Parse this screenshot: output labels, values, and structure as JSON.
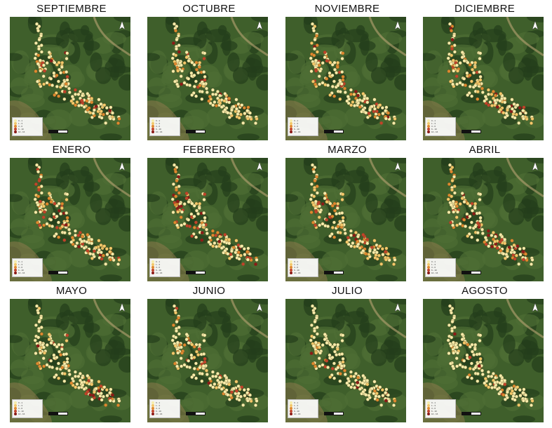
{
  "colors": {
    "class_1": "#f7ecaa",
    "class_2": "#f3c86a",
    "class_3": "#e0892f",
    "class_4": "#c2432a",
    "class_5": "#8c1a17",
    "forest_dark": "#243d1b",
    "forest_mid": "#3f5f2b",
    "clearing": "#8c7a4c"
  },
  "legend": {
    "title": "",
    "labels": [
      "0 - 1",
      "1 - 3",
      "3 - 6",
      "6 - 10",
      "10 - 16"
    ],
    "source": ""
  },
  "panels": [
    {
      "month": "SEPTIEMBRE",
      "weights": [
        0.62,
        0.18,
        0.12,
        0.06,
        0.02
      ]
    },
    {
      "month": "OCTUBRE",
      "weights": [
        0.66,
        0.18,
        0.1,
        0.04,
        0.02
      ]
    },
    {
      "month": "NOVIEMBRE",
      "weights": [
        0.55,
        0.17,
        0.14,
        0.09,
        0.05
      ]
    },
    {
      "month": "DICIEMBRE",
      "weights": [
        0.58,
        0.18,
        0.13,
        0.07,
        0.04
      ]
    },
    {
      "month": "ENERO",
      "weights": [
        0.48,
        0.16,
        0.15,
        0.13,
        0.08
      ]
    },
    {
      "month": "FEBRERO",
      "weights": [
        0.5,
        0.17,
        0.15,
        0.11,
        0.07
      ]
    },
    {
      "month": "MARZO",
      "weights": [
        0.5,
        0.17,
        0.14,
        0.12,
        0.07
      ]
    },
    {
      "month": "ABRIL",
      "weights": [
        0.47,
        0.17,
        0.15,
        0.13,
        0.08
      ]
    },
    {
      "month": "MAYO",
      "weights": [
        0.63,
        0.16,
        0.11,
        0.07,
        0.03
      ]
    },
    {
      "month": "JUNIO",
      "weights": [
        0.66,
        0.15,
        0.11,
        0.06,
        0.02
      ]
    },
    {
      "month": "JULIO",
      "weights": [
        0.8,
        0.1,
        0.06,
        0.03,
        0.01
      ]
    },
    {
      "month": "AGOSTO",
      "weights": [
        0.82,
        0.1,
        0.05,
        0.02,
        0.01
      ]
    }
  ]
}
